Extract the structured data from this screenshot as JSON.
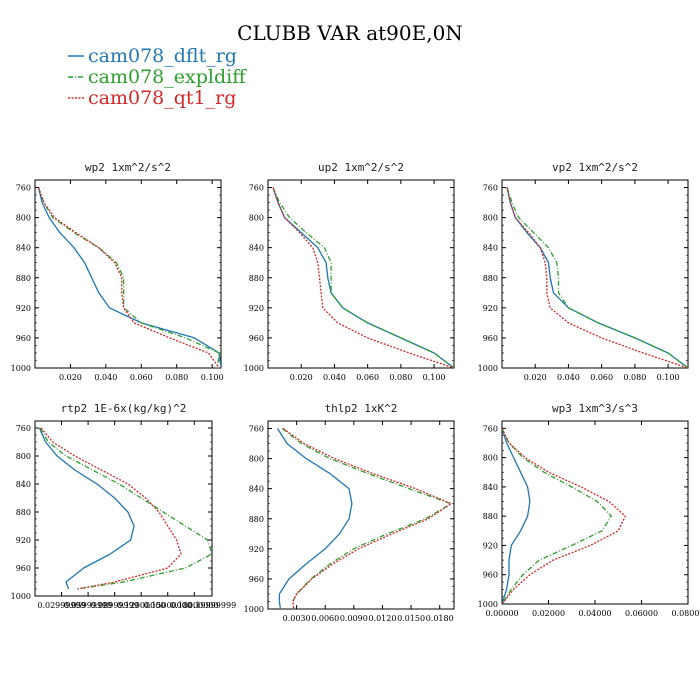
{
  "title": "CLUBB VAR at90E,0N",
  "colors": {
    "cam078_dflt_rg": "#1f77b4",
    "cam078_expldiff": "#2ca02c",
    "cam078_qt1_rg": "#d62728"
  },
  "legend": [
    {
      "name": "cam078_dflt_rg",
      "style": "solid"
    },
    {
      "name": "cam078_expldiff",
      "style": "dashdot"
    },
    {
      "name": "cam078_qt1_rg",
      "style": "dotted"
    }
  ],
  "chart_data": [
    {
      "type": "line",
      "title": "wp2   1xm^2/s^2",
      "ylim": [
        1000,
        750
      ],
      "yticks": [
        760,
        800,
        840,
        880,
        920,
        960,
        1000
      ],
      "xlim": [
        0.0,
        0.105
      ],
      "xticks": [
        0.02,
        0.04,
        0.06,
        0.08,
        0.1
      ],
      "xtick_labels": [
        "0.020",
        "0.040",
        "0.060",
        "0.080",
        "0.100"
      ],
      "series": [
        {
          "name": "cam078_dflt_rg",
          "x": [
            0.002,
            0.004,
            0.008,
            0.014,
            0.022,
            0.028,
            0.032,
            0.036,
            0.042,
            0.06,
            0.09,
            0.104,
            0.105
          ],
          "y": [
            760,
            780,
            800,
            820,
            840,
            860,
            880,
            900,
            920,
            940,
            960,
            980,
            1000
          ]
        },
        {
          "name": "cam078_expldiff",
          "x": [
            0.002,
            0.005,
            0.01,
            0.022,
            0.036,
            0.046,
            0.05,
            0.05,
            0.05,
            0.06,
            0.085,
            0.104,
            0.103
          ],
          "y": [
            760,
            780,
            800,
            820,
            840,
            860,
            880,
            900,
            920,
            940,
            960,
            980,
            1000
          ]
        },
        {
          "name": "cam078_qt1_rg",
          "x": [
            0.002,
            0.005,
            0.011,
            0.023,
            0.036,
            0.045,
            0.049,
            0.049,
            0.05,
            0.056,
            0.076,
            0.098,
            0.104
          ],
          "y": [
            760,
            780,
            800,
            820,
            840,
            860,
            880,
            900,
            920,
            940,
            960,
            980,
            1000
          ]
        }
      ]
    },
    {
      "type": "line",
      "title": "up2   1xm^2/s^2",
      "ylim": [
        1000,
        750
      ],
      "yticks": [
        760,
        800,
        840,
        880,
        920,
        960,
        1000
      ],
      "xlim": [
        0.0,
        0.112
      ],
      "xticks": [
        0.02,
        0.04,
        0.06,
        0.08,
        0.1
      ],
      "xtick_labels": [
        "0.020",
        "0.040",
        "0.060",
        "0.080",
        "0.100"
      ],
      "series": [
        {
          "name": "cam078_dflt_rg",
          "x": [
            0.003,
            0.006,
            0.01,
            0.02,
            0.03,
            0.035,
            0.036,
            0.038,
            0.045,
            0.06,
            0.08,
            0.1,
            0.112
          ],
          "y": [
            760,
            780,
            800,
            820,
            840,
            860,
            880,
            900,
            920,
            940,
            960,
            980,
            1000
          ]
        },
        {
          "name": "cam078_expldiff",
          "x": [
            0.003,
            0.007,
            0.013,
            0.023,
            0.034,
            0.038,
            0.038,
            0.038,
            0.045,
            0.06,
            0.08,
            0.1,
            0.112
          ],
          "y": [
            760,
            780,
            800,
            820,
            840,
            860,
            880,
            900,
            920,
            940,
            960,
            980,
            1000
          ]
        },
        {
          "name": "cam078_qt1_rg",
          "x": [
            0.003,
            0.006,
            0.01,
            0.019,
            0.027,
            0.03,
            0.031,
            0.032,
            0.033,
            0.042,
            0.06,
            0.085,
            0.112
          ],
          "y": [
            760,
            780,
            800,
            820,
            840,
            860,
            880,
            900,
            920,
            940,
            960,
            980,
            1000
          ]
        }
      ]
    },
    {
      "type": "line",
      "title": "vp2   1xm^2/s^2",
      "ylim": [
        1000,
        750
      ],
      "yticks": [
        760,
        800,
        840,
        880,
        920,
        960,
        1000
      ],
      "xlim": [
        0.0,
        0.112
      ],
      "xticks": [
        0.02,
        0.04,
        0.06,
        0.08,
        0.1
      ],
      "xtick_labels": [
        "0.020",
        "0.040",
        "0.060",
        "0.080",
        "0.100"
      ],
      "series": [
        {
          "name": "cam078_dflt_rg",
          "x": [
            0.003,
            0.005,
            0.008,
            0.015,
            0.023,
            0.028,
            0.029,
            0.031,
            0.04,
            0.058,
            0.08,
            0.1,
            0.112
          ],
          "y": [
            760,
            780,
            800,
            820,
            840,
            860,
            880,
            900,
            920,
            940,
            960,
            980,
            1000
          ]
        },
        {
          "name": "cam078_expldiff",
          "x": [
            0.003,
            0.006,
            0.01,
            0.019,
            0.028,
            0.033,
            0.034,
            0.034,
            0.04,
            0.058,
            0.08,
            0.1,
            0.112
          ],
          "y": [
            760,
            780,
            800,
            820,
            840,
            860,
            880,
            900,
            920,
            940,
            960,
            980,
            1000
          ]
        },
        {
          "name": "cam078_qt1_rg",
          "x": [
            0.003,
            0.005,
            0.008,
            0.016,
            0.023,
            0.026,
            0.027,
            0.027,
            0.029,
            0.04,
            0.06,
            0.085,
            0.112
          ],
          "y": [
            760,
            780,
            800,
            820,
            840,
            860,
            880,
            900,
            920,
            940,
            960,
            980,
            1000
          ]
        }
      ]
    },
    {
      "type": "line",
      "title": "rtp2   1E-6x(kg/kg)^2",
      "ylim": [
        1000,
        750
      ],
      "yticks": [
        760,
        800,
        840,
        880,
        920,
        960,
        1000
      ],
      "xlim": [
        0.0,
        0.2
      ],
      "xticks": [
        0.03,
        0.06,
        0.09,
        0.12,
        0.15,
        0.18,
        0.2
      ],
      "xtick_labels": [
        "0.02999999",
        "0.05999999",
        "0.08999999",
        "0.12000000",
        "0.15000000",
        "0.18000000",
        "0.19999999"
      ],
      "series": [
        {
          "name": "cam078_dflt_rg",
          "x": [
            0.005,
            0.012,
            0.025,
            0.045,
            0.07,
            0.09,
            0.105,
            0.112,
            0.108,
            0.085,
            0.055,
            0.035,
            0.038
          ],
          "y": [
            760,
            780,
            800,
            820,
            840,
            860,
            880,
            900,
            920,
            940,
            960,
            980,
            990
          ]
        },
        {
          "name": "cam078_expldiff",
          "x": [
            0.006,
            0.015,
            0.035,
            0.065,
            0.095,
            0.12,
            0.145,
            0.17,
            0.195,
            0.2,
            0.17,
            0.1,
            0.048
          ],
          "y": [
            760,
            780,
            800,
            820,
            840,
            860,
            880,
            900,
            920,
            940,
            960,
            980,
            990
          ]
        },
        {
          "name": "cam078_qt1_rg",
          "x": [
            0.007,
            0.02,
            0.045,
            0.075,
            0.105,
            0.125,
            0.14,
            0.15,
            0.16,
            0.165,
            0.15,
            0.09,
            0.048
          ],
          "y": [
            760,
            780,
            800,
            820,
            840,
            860,
            880,
            900,
            920,
            940,
            960,
            980,
            990
          ]
        }
      ]
    },
    {
      "type": "line",
      "title": "thlp2   1xK^2",
      "ylim": [
        1000,
        750
      ],
      "yticks": [
        760,
        800,
        840,
        880,
        920,
        960,
        1000
      ],
      "xlim": [
        0.0,
        0.0195
      ],
      "xticks": [
        0.003,
        0.006,
        0.009,
        0.012,
        0.015,
        0.018
      ],
      "xtick_labels": [
        "0.0030",
        "0.0060",
        "0.0090",
        "0.0120",
        "0.0150",
        "0.0180"
      ],
      "series": [
        {
          "name": "cam078_dflt_rg",
          "x": [
            0.001,
            0.002,
            0.004,
            0.0065,
            0.0085,
            0.0088,
            0.0085,
            0.0075,
            0.006,
            0.004,
            0.0022,
            0.0012,
            0.0012,
            0.0013
          ],
          "y": [
            760,
            780,
            800,
            820,
            840,
            860,
            880,
            900,
            920,
            940,
            960,
            980,
            990,
            1000
          ]
        },
        {
          "name": "cam078_expldiff",
          "x": [
            0.0015,
            0.0035,
            0.0065,
            0.0105,
            0.0148,
            0.0192,
            0.0165,
            0.0125,
            0.009,
            0.0065,
            0.0045,
            0.003,
            0.0026,
            0.0027
          ],
          "y": [
            760,
            780,
            800,
            820,
            840,
            860,
            880,
            900,
            920,
            940,
            960,
            980,
            990,
            1000
          ]
        },
        {
          "name": "cam078_qt1_rg",
          "x": [
            0.0016,
            0.0038,
            0.007,
            0.011,
            0.0155,
            0.0192,
            0.0168,
            0.013,
            0.0095,
            0.0068,
            0.0046,
            0.003,
            0.0026,
            0.0027
          ],
          "y": [
            760,
            780,
            800,
            820,
            840,
            860,
            880,
            900,
            920,
            940,
            960,
            980,
            990,
            1000
          ]
        }
      ]
    },
    {
      "type": "line",
      "title": "wp3   1xm^3/s^3",
      "ylim": [
        1000,
        750
      ],
      "yticks": [
        760,
        800,
        840,
        880,
        920,
        960,
        1000
      ],
      "xlim": [
        0.0,
        0.08
      ],
      "xticks": [
        0.0,
        0.02,
        0.04,
        0.06,
        0.08
      ],
      "xtick_labels": [
        "0.00000",
        "0.02000",
        "0.04000",
        "0.06000",
        "0.08000"
      ],
      "series": [
        {
          "name": "cam078_dflt_rg",
          "x": [
            0.0,
            0.002,
            0.005,
            0.008,
            0.011,
            0.012,
            0.011,
            0.008,
            0.004,
            0.003,
            0.003,
            0.002,
            0.0
          ],
          "y": [
            760,
            780,
            800,
            820,
            840,
            860,
            880,
            900,
            920,
            940,
            960,
            980,
            1000
          ]
        },
        {
          "name": "cam078_expldiff",
          "x": [
            0.0,
            0.003,
            0.009,
            0.018,
            0.03,
            0.041,
            0.047,
            0.043,
            0.03,
            0.016,
            0.009,
            0.004,
            0.0
          ],
          "y": [
            760,
            780,
            800,
            820,
            840,
            860,
            880,
            900,
            920,
            940,
            960,
            980,
            1000
          ]
        },
        {
          "name": "cam078_qt1_rg",
          "x": [
            0.0,
            0.003,
            0.01,
            0.02,
            0.034,
            0.046,
            0.053,
            0.05,
            0.038,
            0.022,
            0.012,
            0.005,
            0.0
          ],
          "y": [
            760,
            780,
            800,
            820,
            840,
            860,
            880,
            900,
            920,
            940,
            960,
            980,
            1000
          ]
        }
      ]
    }
  ]
}
